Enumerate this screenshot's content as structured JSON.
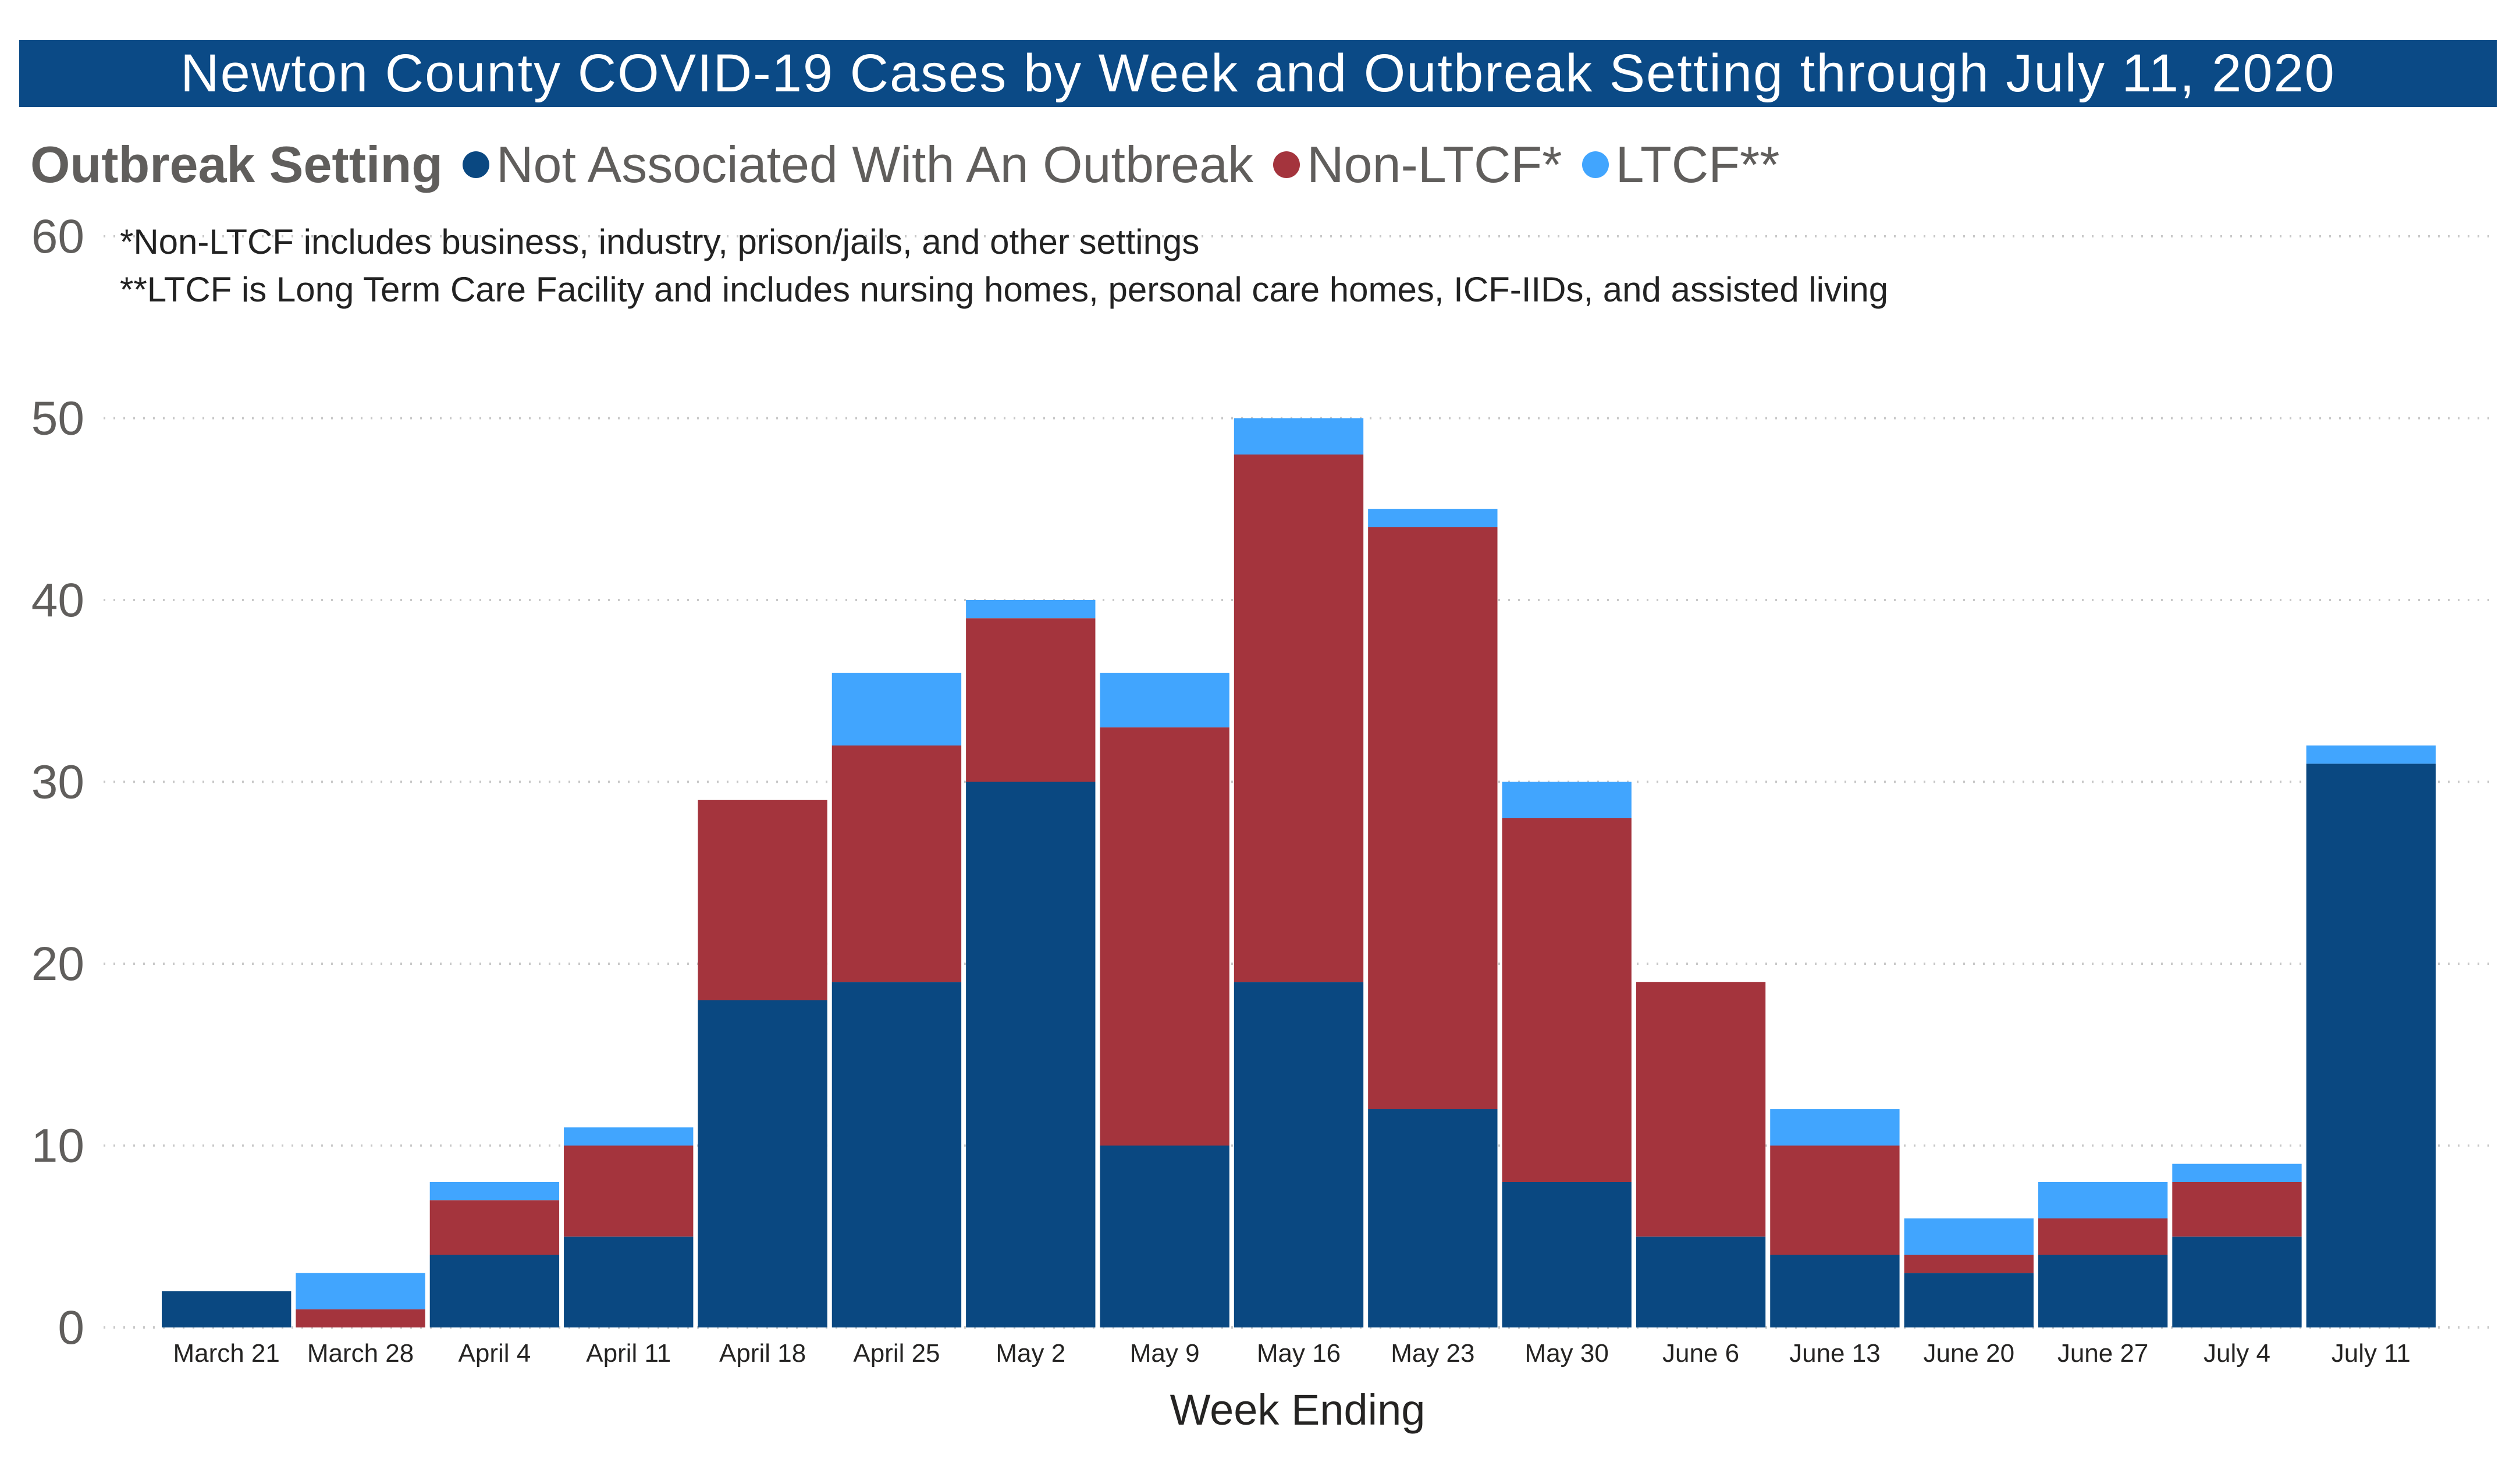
{
  "title": "Newton County COVID-19 Cases by Week and Outbreak Setting through July 11, 2020",
  "legend": {
    "title": "Outbreak Setting",
    "items": [
      {
        "label": "Not Associated With An Outbreak",
        "color": "#0a4881"
      },
      {
        "label": "Non-LTCF*",
        "color": "#a4343d"
      },
      {
        "label": "LTCF**",
        "color": "#41a5fe"
      }
    ]
  },
  "notes": [
    "*Non-LTCF includes business, industry, prison/jails, and other settings",
    "**LTCF is Long Term Care Facility and includes nursing homes, personal care homes, ICF-IIDs, and assisted living"
  ],
  "chart_data": {
    "type": "bar",
    "stacked": true,
    "title": "Newton County COVID-19 Cases by Week and Outbreak Setting through July 11, 2020",
    "xlabel": "Week Ending",
    "ylabel": "",
    "ylim": [
      0,
      60
    ],
    "yticks": [
      0,
      10,
      20,
      30,
      40,
      50,
      60
    ],
    "grid": true,
    "legend_position": "top-left",
    "categories": [
      "March 21",
      "March 28",
      "April 4",
      "April 11",
      "April 18",
      "April 25",
      "May 2",
      "May 9",
      "May 16",
      "May 23",
      "May 30",
      "June 6",
      "June 13",
      "June 20",
      "June 27",
      "July 4",
      "July 11"
    ],
    "series": [
      {
        "name": "Not Associated With An Outbreak",
        "color": "#0a4881",
        "values": [
          2,
          0,
          4,
          5,
          18,
          19,
          30,
          10,
          19,
          12,
          8,
          5,
          4,
          3,
          4,
          5,
          31
        ]
      },
      {
        "name": "Non-LTCF*",
        "color": "#a4343d",
        "values": [
          0,
          1,
          3,
          5,
          11,
          13,
          9,
          23,
          29,
          32,
          20,
          14,
          6,
          1,
          2,
          3,
          0
        ]
      },
      {
        "name": "LTCF**",
        "color": "#41a5fe",
        "values": [
          0,
          2,
          1,
          1,
          0,
          4,
          1,
          3,
          2,
          1,
          2,
          0,
          2,
          2,
          2,
          1,
          1
        ]
      }
    ]
  }
}
